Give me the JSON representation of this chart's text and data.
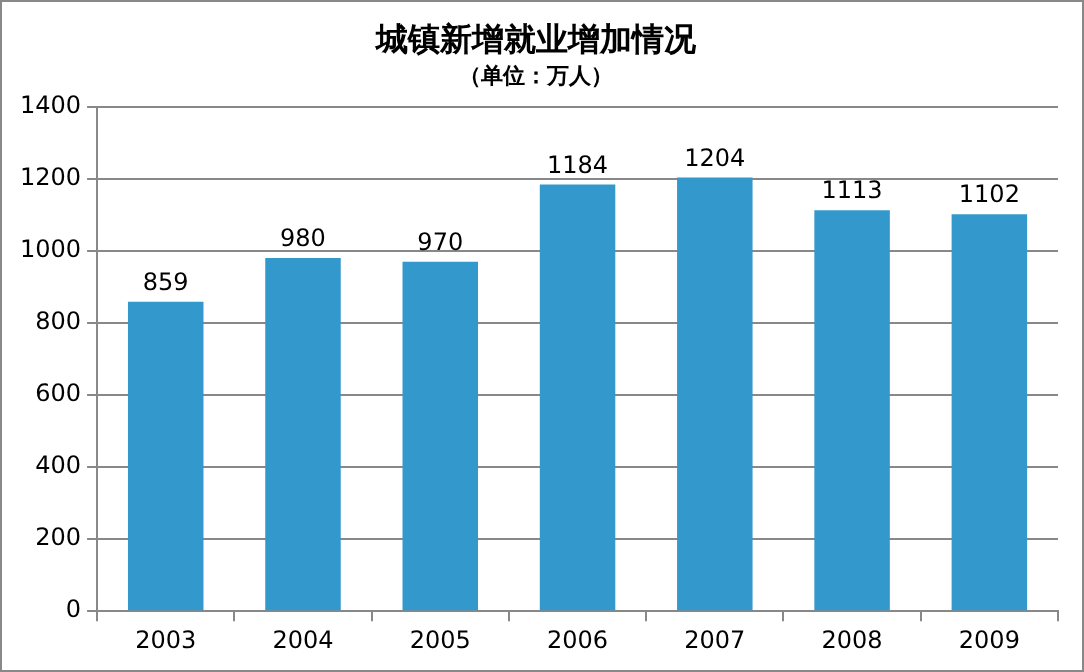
{
  "chart_data": {
    "type": "bar",
    "title": "城镇新增就业增加情况",
    "subtitle": "（单位：万人）",
    "categories": [
      "2003",
      "2004",
      "2005",
      "2006",
      "2007",
      "2008",
      "2009"
    ],
    "values": [
      859,
      980,
      970,
      1184,
      1204,
      1113,
      1102
    ],
    "color": "#3399cc",
    "ylim": [
      0,
      1400
    ],
    "yticks": [
      0,
      200,
      400,
      600,
      800,
      1000,
      1200,
      1400
    ],
    "grid": "y",
    "data_labels": true
  }
}
